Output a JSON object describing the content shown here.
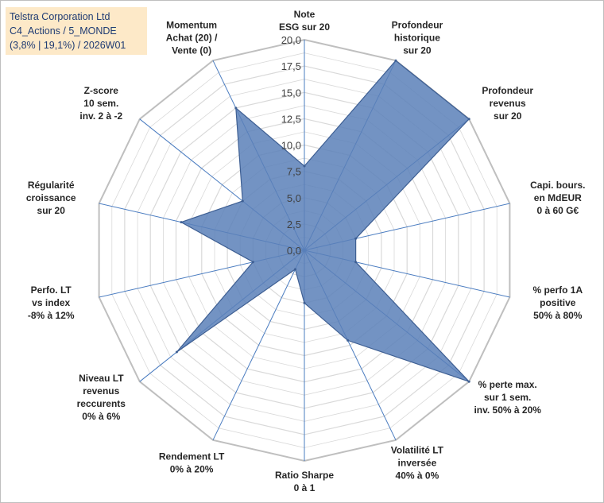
{
  "info_box": {
    "line1": "Telstra Corporation Ltd",
    "line2": "C4_Actions / 5_MONDE",
    "line3": "(3,8% | 19,1%) / 2026W01"
  },
  "colors": {
    "fill": "#5b80b8",
    "stroke": "#3e5f93",
    "grid": "#d9d9d9",
    "axis": "#4a7cc0"
  },
  "chart_data": {
    "type": "radar",
    "title": "Telstra Corporation Ltd",
    "rlim": [
      0,
      20
    ],
    "ticks": [
      "0,0",
      "2,5",
      "5,0",
      "7,5",
      "10,0",
      "12,5",
      "15,0",
      "17,5",
      "20,0"
    ],
    "axes": [
      {
        "label": [
          "Note",
          "ESG sur 20"
        ],
        "value": 8.0
      },
      {
        "label": [
          "Profondeur",
          "historique",
          "sur 20"
        ],
        "value": 20.0
      },
      {
        "label": [
          "Profondeur",
          "revenus",
          "sur 20"
        ],
        "value": 20.0
      },
      {
        "label": [
          "Capi. bours.",
          "en MdEUR",
          "0 à 60 G€"
        ],
        "value": 5.0
      },
      {
        "label": [
          "% perfo 1A",
          "positive",
          "50% à 80%"
        ],
        "value": 5.0
      },
      {
        "label": [
          "% perte max.",
          "sur 1 sem.",
          "inv. 50% à 20%"
        ],
        "value": 20.0
      },
      {
        "label": [
          "Volatilité LT",
          "inversée",
          "40% à 0%"
        ],
        "value": 9.5
      },
      {
        "label": [
          "Ratio Sharpe",
          "0 à 1"
        ],
        "value": 5.0
      },
      {
        "label": [
          "Rendement LT",
          "0% à 20%"
        ],
        "value": 2.0
      },
      {
        "label": [
          "Niveau LT",
          "revenus",
          "reccurents",
          "0% à 6%"
        ],
        "value": 15.5
      },
      {
        "label": [
          "Perfo. LT",
          "vs index",
          "-8% à 12%"
        ],
        "value": 5.0
      },
      {
        "label": [
          "Régularité",
          "croissance",
          "sur 20"
        ],
        "value": 12.0
      },
      {
        "label": [
          "Z-score",
          "10 sem.",
          "inv. 2 à -2"
        ],
        "value": 7.5
      },
      {
        "label": [
          "Momentum",
          "Achat (20) /",
          "Vente (0)"
        ],
        "value": 15.0
      }
    ]
  }
}
